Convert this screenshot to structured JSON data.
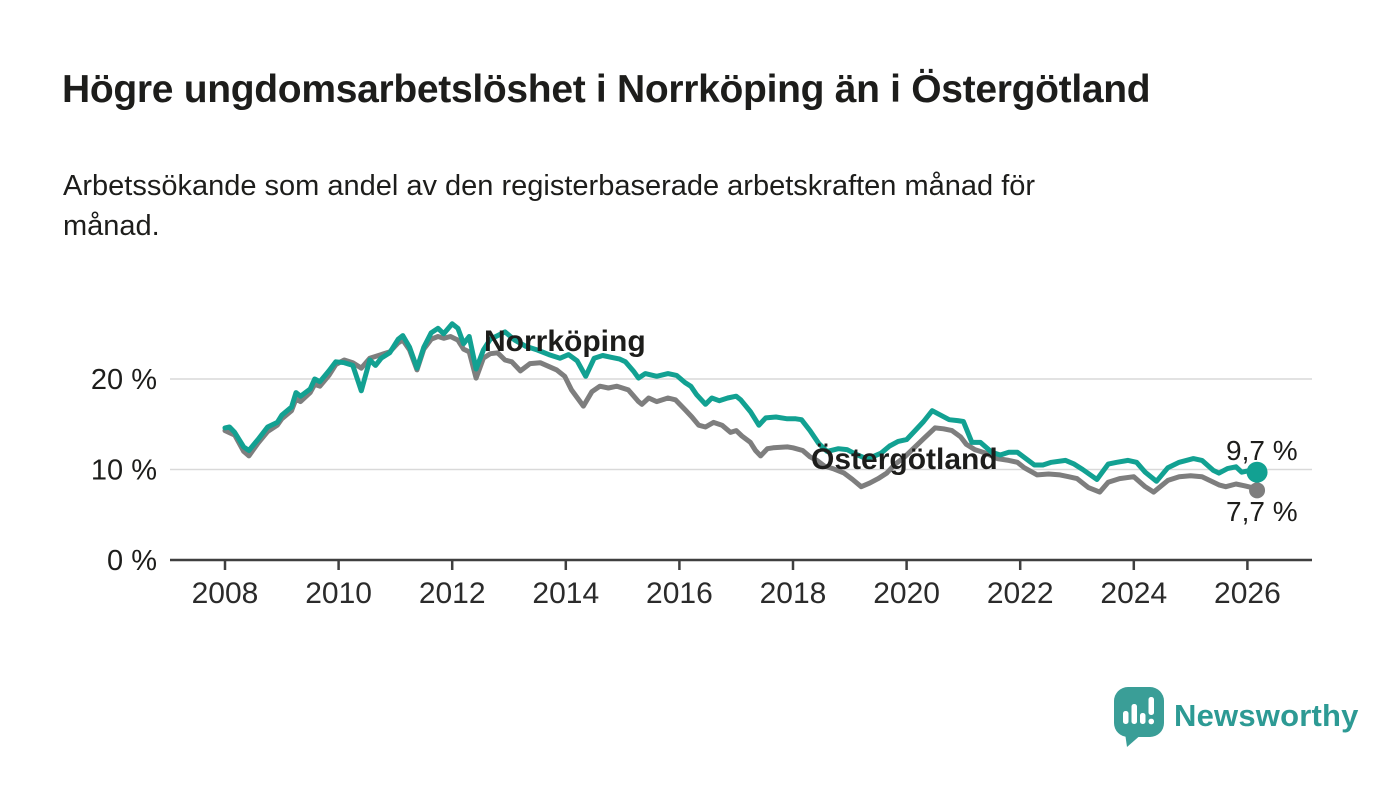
{
  "header": {
    "title": "Högre ungdomsarbetslöshet i Norrköping än i Östergötland",
    "subtitle_lines": [
      "Arbetssökande som andel av den registerbaserade arbetskraften månad för",
      "månad."
    ]
  },
  "chart_data": {
    "type": "line",
    "unit": "%",
    "grid": "horizontal",
    "x_axis": {
      "ticks": [
        2008,
        2010,
        2012,
        2014,
        2016,
        2018,
        2020,
        2022,
        2024,
        2026
      ],
      "range": [
        2007.2,
        2027.1
      ]
    },
    "y_axis": {
      "ticks": [
        0,
        10,
        20
      ],
      "tick_suffix": " %",
      "range": [
        0,
        28
      ]
    },
    "series": [
      {
        "name": "Norrköping",
        "color": "#12a192",
        "end_value": 9.7,
        "end_label": "9,7 %",
        "points": [
          [
            2008.0,
            14.6
          ],
          [
            2008.08,
            14.7
          ],
          [
            2008.17,
            14.1
          ],
          [
            2008.33,
            12.5
          ],
          [
            2008.42,
            12.1
          ],
          [
            2008.58,
            13.3
          ],
          [
            2008.75,
            14.7
          ],
          [
            2008.92,
            15.2
          ],
          [
            2009.0,
            16.0
          ],
          [
            2009.17,
            16.9
          ],
          [
            2009.25,
            18.5
          ],
          [
            2009.33,
            18.1
          ],
          [
            2009.5,
            18.9
          ],
          [
            2009.58,
            20.0
          ],
          [
            2009.67,
            19.7
          ],
          [
            2009.83,
            20.9
          ],
          [
            2009.95,
            21.9
          ],
          [
            2010.1,
            21.8
          ],
          [
            2010.25,
            21.5
          ],
          [
            2010.4,
            18.7
          ],
          [
            2010.55,
            22.1
          ],
          [
            2010.65,
            21.5
          ],
          [
            2010.75,
            22.3
          ],
          [
            2010.9,
            22.9
          ],
          [
            2011.05,
            24.4
          ],
          [
            2011.13,
            24.8
          ],
          [
            2011.25,
            23.5
          ],
          [
            2011.38,
            21.2
          ],
          [
            2011.5,
            23.5
          ],
          [
            2011.63,
            25.1
          ],
          [
            2011.75,
            25.6
          ],
          [
            2011.85,
            25.0
          ],
          [
            2012.0,
            26.1
          ],
          [
            2012.1,
            25.6
          ],
          [
            2012.2,
            23.9
          ],
          [
            2012.3,
            24.7
          ],
          [
            2012.42,
            21.1
          ],
          [
            2012.55,
            23.2
          ],
          [
            2012.67,
            24.4
          ],
          [
            2012.8,
            24.8
          ],
          [
            2012.93,
            25.2
          ],
          [
            2013.1,
            24.3
          ],
          [
            2013.3,
            23.6
          ],
          [
            2013.5,
            23.2
          ],
          [
            2013.7,
            22.7
          ],
          [
            2013.9,
            22.3
          ],
          [
            2014.05,
            22.7
          ],
          [
            2014.2,
            22.0
          ],
          [
            2014.35,
            20.3
          ],
          [
            2014.5,
            22.3
          ],
          [
            2014.65,
            22.6
          ],
          [
            2014.8,
            22.4
          ],
          [
            2014.95,
            22.2
          ],
          [
            2015.05,
            21.9
          ],
          [
            2015.2,
            20.8
          ],
          [
            2015.28,
            20.1
          ],
          [
            2015.4,
            20.6
          ],
          [
            2015.6,
            20.3
          ],
          [
            2015.8,
            20.6
          ],
          [
            2015.95,
            20.4
          ],
          [
            2016.1,
            19.6
          ],
          [
            2016.2,
            19.2
          ],
          [
            2016.3,
            18.3
          ],
          [
            2016.46,
            17.2
          ],
          [
            2016.57,
            17.9
          ],
          [
            2016.7,
            17.6
          ],
          [
            2016.85,
            17.9
          ],
          [
            2017.0,
            18.1
          ],
          [
            2017.08,
            17.7
          ],
          [
            2017.25,
            16.4
          ],
          [
            2017.4,
            14.9
          ],
          [
            2017.52,
            15.7
          ],
          [
            2017.7,
            15.8
          ],
          [
            2017.9,
            15.6
          ],
          [
            2018.05,
            15.6
          ],
          [
            2018.15,
            15.5
          ],
          [
            2018.3,
            14.3
          ],
          [
            2018.45,
            12.9
          ],
          [
            2018.6,
            12.0
          ],
          [
            2018.8,
            12.3
          ],
          [
            2018.95,
            12.2
          ],
          [
            2019.1,
            11.7
          ],
          [
            2019.25,
            11.3
          ],
          [
            2019.4,
            11.4
          ],
          [
            2019.55,
            11.8
          ],
          [
            2019.7,
            12.6
          ],
          [
            2019.85,
            13.1
          ],
          [
            2020.0,
            13.3
          ],
          [
            2020.15,
            14.3
          ],
          [
            2020.3,
            15.3
          ],
          [
            2020.45,
            16.5
          ],
          [
            2020.6,
            16.0
          ],
          [
            2020.75,
            15.5
          ],
          [
            2020.9,
            15.4
          ],
          [
            2021.0,
            15.3
          ],
          [
            2021.15,
            13.0
          ],
          [
            2021.3,
            13.0
          ],
          [
            2021.5,
            11.9
          ],
          [
            2021.65,
            11.6
          ],
          [
            2021.8,
            11.9
          ],
          [
            2021.95,
            11.9
          ],
          [
            2022.1,
            11.2
          ],
          [
            2022.25,
            10.5
          ],
          [
            2022.4,
            10.5
          ],
          [
            2022.55,
            10.8
          ],
          [
            2022.8,
            11.0
          ],
          [
            2022.95,
            10.6
          ],
          [
            2023.1,
            10.0
          ],
          [
            2023.35,
            8.9
          ],
          [
            2023.55,
            10.6
          ],
          [
            2023.7,
            10.8
          ],
          [
            2023.9,
            11.0
          ],
          [
            2024.05,
            10.8
          ],
          [
            2024.2,
            9.7
          ],
          [
            2024.4,
            8.7
          ],
          [
            2024.6,
            10.2
          ],
          [
            2024.8,
            10.8
          ],
          [
            2025.05,
            11.2
          ],
          [
            2025.2,
            11.0
          ],
          [
            2025.4,
            9.9
          ],
          [
            2025.5,
            9.6
          ],
          [
            2025.65,
            10.1
          ],
          [
            2025.8,
            10.3
          ],
          [
            2025.9,
            9.7
          ],
          [
            2026.05,
            9.9
          ],
          [
            2026.17,
            9.7
          ]
        ]
      },
      {
        "name": "Östergötland",
        "color": "#7e7e7e",
        "end_value": 7.7,
        "end_label": "7,7 %",
        "points": [
          [
            2008.0,
            14.3
          ],
          [
            2008.17,
            13.8
          ],
          [
            2008.33,
            12.0
          ],
          [
            2008.42,
            11.5
          ],
          [
            2008.58,
            12.9
          ],
          [
            2008.75,
            14.2
          ],
          [
            2008.92,
            14.9
          ],
          [
            2009.0,
            15.6
          ],
          [
            2009.17,
            16.5
          ],
          [
            2009.25,
            17.8
          ],
          [
            2009.33,
            17.5
          ],
          [
            2009.5,
            18.5
          ],
          [
            2009.58,
            19.4
          ],
          [
            2009.67,
            19.2
          ],
          [
            2009.83,
            20.4
          ],
          [
            2009.95,
            21.6
          ],
          [
            2010.1,
            22.1
          ],
          [
            2010.25,
            21.8
          ],
          [
            2010.4,
            21.2
          ],
          [
            2010.55,
            22.3
          ],
          [
            2010.75,
            22.7
          ],
          [
            2010.9,
            23.0
          ],
          [
            2011.05,
            24.0
          ],
          [
            2011.13,
            24.3
          ],
          [
            2011.25,
            23.2
          ],
          [
            2011.38,
            21.0
          ],
          [
            2011.5,
            23.3
          ],
          [
            2011.63,
            24.4
          ],
          [
            2011.75,
            24.7
          ],
          [
            2011.85,
            24.5
          ],
          [
            2011.97,
            24.7
          ],
          [
            2012.1,
            24.3
          ],
          [
            2012.2,
            23.3
          ],
          [
            2012.3,
            23.0
          ],
          [
            2012.42,
            20.1
          ],
          [
            2012.55,
            22.3
          ],
          [
            2012.67,
            22.8
          ],
          [
            2012.8,
            22.9
          ],
          [
            2012.93,
            22.1
          ],
          [
            2013.05,
            21.9
          ],
          [
            2013.2,
            20.9
          ],
          [
            2013.37,
            21.7
          ],
          [
            2013.55,
            21.8
          ],
          [
            2013.84,
            21.0
          ],
          [
            2013.98,
            20.3
          ],
          [
            2014.1,
            18.8
          ],
          [
            2014.31,
            17.0
          ],
          [
            2014.46,
            18.6
          ],
          [
            2014.6,
            19.2
          ],
          [
            2014.75,
            19.0
          ],
          [
            2014.9,
            19.2
          ],
          [
            2015.1,
            18.8
          ],
          [
            2015.28,
            17.5
          ],
          [
            2015.34,
            17.2
          ],
          [
            2015.46,
            17.9
          ],
          [
            2015.6,
            17.5
          ],
          [
            2015.8,
            17.9
          ],
          [
            2015.93,
            17.7
          ],
          [
            2016.1,
            16.6
          ],
          [
            2016.22,
            15.8
          ],
          [
            2016.34,
            14.9
          ],
          [
            2016.46,
            14.7
          ],
          [
            2016.6,
            15.2
          ],
          [
            2016.75,
            14.9
          ],
          [
            2016.9,
            14.1
          ],
          [
            2017.0,
            14.3
          ],
          [
            2017.1,
            13.7
          ],
          [
            2017.25,
            13.0
          ],
          [
            2017.34,
            12.1
          ],
          [
            2017.43,
            11.5
          ],
          [
            2017.55,
            12.3
          ],
          [
            2017.65,
            12.4
          ],
          [
            2017.9,
            12.5
          ],
          [
            2018.0,
            12.4
          ],
          [
            2018.17,
            12.1
          ],
          [
            2018.3,
            11.4
          ],
          [
            2018.42,
            11.0
          ],
          [
            2018.55,
            10.4
          ],
          [
            2018.7,
            10.1
          ],
          [
            2018.9,
            9.6
          ],
          [
            2019.05,
            8.9
          ],
          [
            2019.2,
            8.1
          ],
          [
            2019.35,
            8.5
          ],
          [
            2019.5,
            9.0
          ],
          [
            2019.65,
            9.6
          ],
          [
            2019.8,
            10.6
          ],
          [
            2019.95,
            11.3
          ],
          [
            2020.1,
            12.2
          ],
          [
            2020.3,
            13.4
          ],
          [
            2020.5,
            14.6
          ],
          [
            2020.65,
            14.5
          ],
          [
            2020.8,
            14.3
          ],
          [
            2020.95,
            13.6
          ],
          [
            2021.05,
            12.8
          ],
          [
            2021.2,
            12.2
          ],
          [
            2021.4,
            11.8
          ],
          [
            2021.6,
            11.2
          ],
          [
            2021.8,
            11.0
          ],
          [
            2021.95,
            10.8
          ],
          [
            2022.07,
            10.2
          ],
          [
            2022.3,
            9.4
          ],
          [
            2022.5,
            9.5
          ],
          [
            2022.7,
            9.4
          ],
          [
            2022.85,
            9.2
          ],
          [
            2023.0,
            9.0
          ],
          [
            2023.2,
            8.0
          ],
          [
            2023.4,
            7.5
          ],
          [
            2023.55,
            8.6
          ],
          [
            2023.75,
            9.0
          ],
          [
            2024.0,
            9.2
          ],
          [
            2024.2,
            8.1
          ],
          [
            2024.35,
            7.5
          ],
          [
            2024.6,
            8.8
          ],
          [
            2024.8,
            9.2
          ],
          [
            2025.0,
            9.3
          ],
          [
            2025.2,
            9.2
          ],
          [
            2025.5,
            8.3
          ],
          [
            2025.62,
            8.1
          ],
          [
            2025.8,
            8.4
          ],
          [
            2025.95,
            8.2
          ],
          [
            2026.08,
            8.0
          ],
          [
            2026.17,
            7.7
          ]
        ]
      }
    ]
  },
  "branding": {
    "name": "Newsworthy",
    "bubble_color": "#3a9e97",
    "word_color": "#2d9a94"
  },
  "colors": {
    "grid": "#d9d9d9",
    "axis": "#3f3f3f",
    "text": "#1d1d1b"
  }
}
